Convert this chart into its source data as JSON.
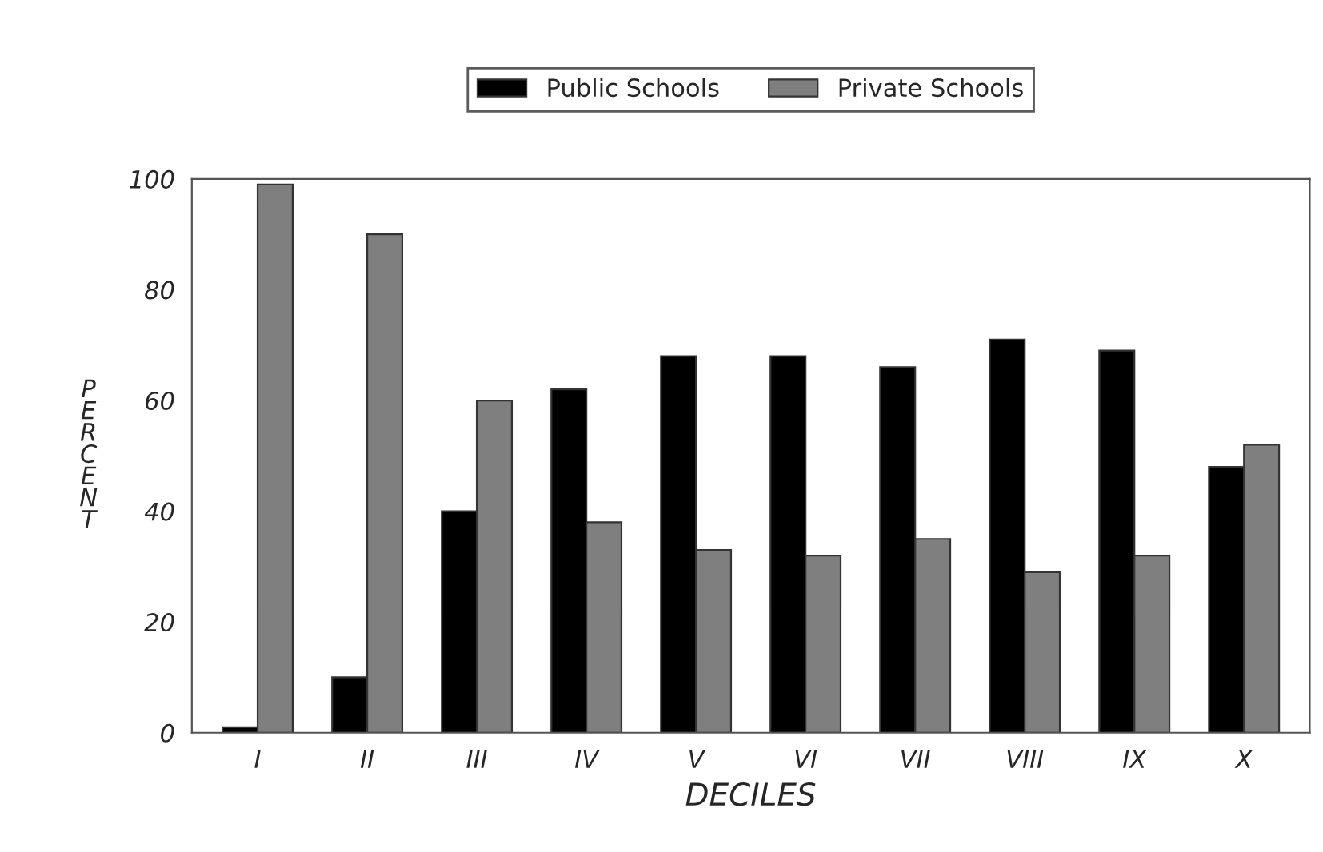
{
  "chart_data": {
    "type": "bar",
    "xlabel": "DECILES",
    "ylabel": "PERCENT",
    "categories": [
      "I",
      "II",
      "III",
      "IV",
      "V",
      "VI",
      "VII",
      "VIII",
      "IX",
      "X"
    ],
    "series": [
      {
        "name": "Public Schools",
        "color": "#000000",
        "values": [
          1,
          10,
          40,
          62,
          68,
          68,
          66,
          71,
          69,
          48
        ]
      },
      {
        "name": "Private Schools",
        "color": "#7f7f7f",
        "values": [
          99,
          90,
          60,
          38,
          33,
          32,
          35,
          29,
          32,
          52
        ]
      }
    ],
    "ylim": [
      0,
      100
    ],
    "yticks": [
      0,
      20,
      40,
      60,
      80,
      100
    ],
    "grid": false,
    "legend": "top"
  }
}
